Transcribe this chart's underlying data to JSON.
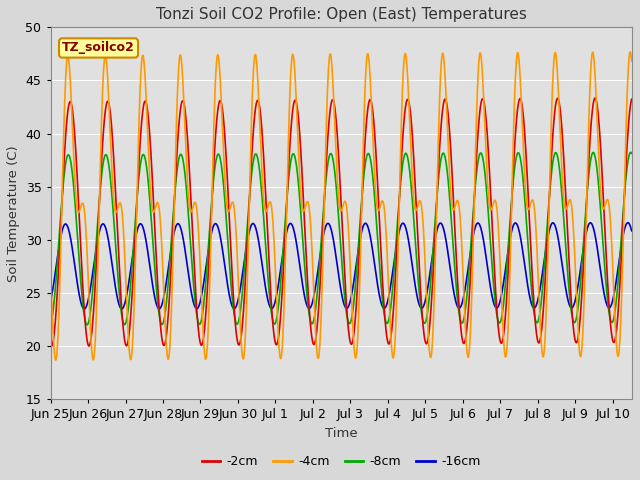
{
  "title": "Tonzi Soil CO2 Profile: Open (East) Temperatures",
  "ylabel": "Soil Temperature (C)",
  "xlabel": "Time",
  "annotation": "TZ_soilco2",
  "ylim": [
    15,
    50
  ],
  "background_color": "#e0e0e0",
  "legend": [
    "-2cm",
    "-4cm",
    "-8cm",
    "-16cm"
  ],
  "colors": [
    "#dd0000",
    "#ff9900",
    "#00aa00",
    "#0000cc"
  ],
  "linewidth": 1.2,
  "grid_color": "#ffffff",
  "tick_labels": [
    "Jun 25",
    "Jun 26",
    "Jun 27",
    "Jun 28",
    "Jun 29",
    "Jun 30",
    "Jul 1",
    "Jul 2",
    "Jul 3",
    "Jul 4",
    "Jul 5",
    "Jul 6",
    "Jul 7",
    "Jul 8",
    "Jul 9",
    "Jul 10"
  ],
  "tick_positions": [
    0,
    1,
    2,
    3,
    4,
    5,
    6,
    7,
    8,
    9,
    10,
    11,
    12,
    13,
    14,
    15
  ],
  "figsize": [
    6.4,
    4.8
  ],
  "dpi": 100
}
